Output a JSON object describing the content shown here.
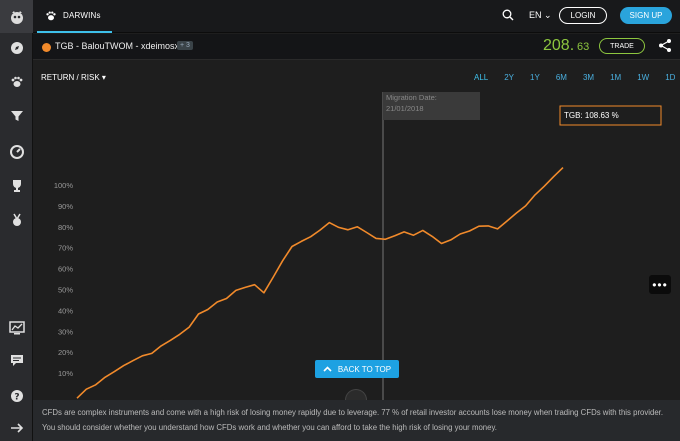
{
  "topbar": {
    "tab_label": "DARWINs",
    "lang": "EN",
    "login": "LOGIN",
    "signup": "SIGN UP"
  },
  "header": {
    "name": "TGB - BalouTWOM - xdeimosx",
    "badge": "+ 3",
    "quote_int": "208.",
    "quote_dec": "63",
    "trade": "TRADE"
  },
  "toolbar": {
    "view": "RETURN / RISK",
    "ranges": [
      "ALL",
      "2Y",
      "1Y",
      "6M",
      "3M",
      "1M",
      "1W",
      "1D"
    ]
  },
  "chart": {
    "migration_label": "Migration Date:",
    "migration_date": "21/01/2018",
    "tooltip": "TGB: 108.63 %"
  },
  "back_to_top": "BACK TO TOP",
  "disclaimer": "CFDs are complex instruments and come with a high risk of losing money rapidly due to leverage. 77 % of retail investor accounts lose money when trading CFDs with this provider. You should consider whether you understand how CFDs work and whether you can afford to take the high risk of losing your money.",
  "colors": {
    "accent": "#3ec0ea",
    "series": "#f18a2b",
    "quote": "#8dc63f"
  },
  "chart_data": {
    "type": "line",
    "ylim": [
      0,
      110
    ],
    "yticks": [
      "10%",
      "20%",
      "30%",
      "40%",
      "50%",
      "60%",
      "70%",
      "80%",
      "90%",
      "100%"
    ],
    "series": [
      {
        "name": "TGB",
        "values": [
          -2,
          2,
          5,
          8,
          11,
          13,
          16,
          18,
          20,
          23,
          26,
          28,
          32,
          38,
          41,
          44,
          46,
          49,
          51,
          52,
          49,
          56,
          64,
          70,
          73,
          75,
          79,
          82,
          80,
          78,
          80,
          77,
          75,
          74,
          76,
          77,
          76,
          78,
          76,
          72,
          74,
          76,
          78,
          80,
          81,
          79,
          83,
          86,
          90,
          95,
          100,
          104,
          108.63
        ]
      }
    ]
  }
}
